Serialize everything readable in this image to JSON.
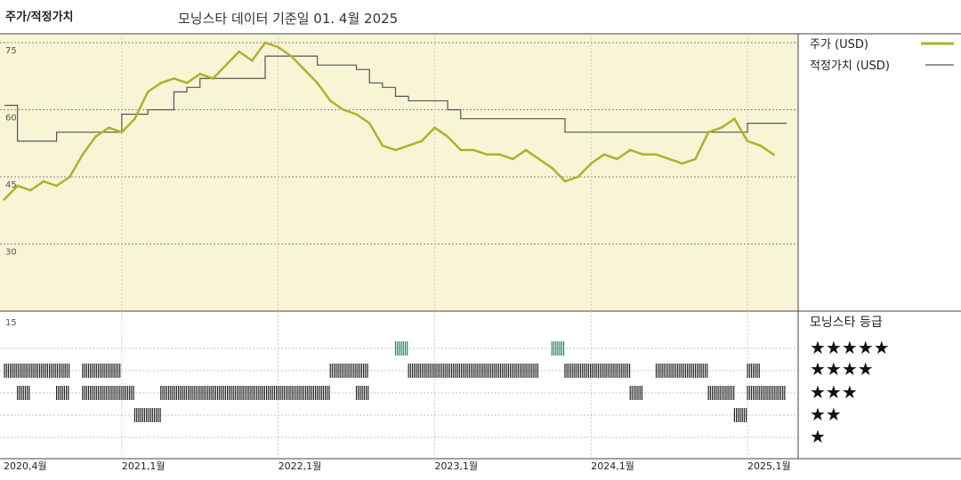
{
  "header": {
    "title": "주가/적정가치",
    "subtitle": "모닝스타 데이터 기준일 01. 4월 2025"
  },
  "legend": {
    "price_label": "주가 (USD)",
    "fair_value_label": "적정가치 (USD)",
    "rating_title": "모닝스타 등급",
    "rating_rows": [
      "★★★★★",
      "★★★★",
      "★★★",
      "★★",
      "★"
    ]
  },
  "colors": {
    "price": "#a8b52a",
    "fair_value": "#555555",
    "plot_bg": "#f8f4d6",
    "five_star": "#2e7d5b",
    "bars": "#222222"
  },
  "chart_data": {
    "type": "line",
    "title": "주가/적정가치",
    "subtitle": "모닝스타 데이터 기준일 01. 4월 2025",
    "ylim": [
      15,
      75
    ],
    "y_ticks": [
      75,
      60,
      45,
      30,
      15
    ],
    "x_tick_labels": [
      "2020,4월",
      "2021,1월",
      "2022,1월",
      "2023,1월",
      "2024,1월",
      "2025,1월"
    ],
    "x_tick_dates": [
      "2020-04",
      "2021-01",
      "2022-01",
      "2023-01",
      "2024-01",
      "2025-01"
    ],
    "x_range": [
      "2020-04",
      "2025-04"
    ],
    "series": [
      {
        "name": "주가 (USD)",
        "x": [
          "2020-04",
          "2020-05",
          "2020-06",
          "2020-07",
          "2020-08",
          "2020-09",
          "2020-10",
          "2020-11",
          "2020-12",
          "2021-01",
          "2021-02",
          "2021-03",
          "2021-04",
          "2021-05",
          "2021-06",
          "2021-07",
          "2021-08",
          "2021-09",
          "2021-10",
          "2021-11",
          "2021-12",
          "2022-01",
          "2022-02",
          "2022-03",
          "2022-04",
          "2022-05",
          "2022-06",
          "2022-07",
          "2022-08",
          "2022-09",
          "2022-10",
          "2022-11",
          "2022-12",
          "2023-01",
          "2023-02",
          "2023-03",
          "2023-04",
          "2023-05",
          "2023-06",
          "2023-07",
          "2023-08",
          "2023-09",
          "2023-10",
          "2023-11",
          "2023-12",
          "2024-01",
          "2024-02",
          "2024-03",
          "2024-04",
          "2024-05",
          "2024-06",
          "2024-07",
          "2024-08",
          "2024-09",
          "2024-10",
          "2024-11",
          "2024-12",
          "2025-01",
          "2025-02",
          "2025-03"
        ],
        "values": [
          40,
          43,
          42,
          44,
          43,
          45,
          50,
          54,
          56,
          55,
          58,
          64,
          66,
          67,
          66,
          68,
          67,
          70,
          73,
          71,
          75,
          74,
          72,
          69,
          66,
          62,
          60,
          59,
          57,
          52,
          51,
          52,
          53,
          56,
          54,
          51,
          51,
          50,
          50,
          49,
          51,
          49,
          47,
          44,
          45,
          48,
          50,
          49,
          51,
          50,
          50,
          49,
          48,
          49,
          55,
          56,
          58,
          53,
          52,
          50
        ]
      },
      {
        "name": "적정가치 (USD)",
        "x": [
          "2020-04",
          "2020-05",
          "2020-07",
          "2020-08",
          "2020-12",
          "2021-01",
          "2021-03",
          "2021-04",
          "2021-05",
          "2021-06",
          "2021-07",
          "2021-08",
          "2021-12",
          "2022-01",
          "2022-02",
          "2022-03",
          "2022-04",
          "2022-07",
          "2022-08",
          "2022-09",
          "2022-10",
          "2022-11",
          "2023-01",
          "2023-02",
          "2023-03",
          "2023-04",
          "2023-06",
          "2023-10",
          "2023-11",
          "2024-12",
          "2025-01",
          "2025-03"
        ],
        "values": [
          61,
          53,
          53,
          55,
          55,
          59,
          60,
          60,
          64,
          65,
          67,
          67,
          72,
          72,
          72,
          72,
          70,
          69,
          66,
          65,
          63,
          62,
          62,
          60,
          58,
          58,
          58,
          58,
          55,
          55,
          57,
          57
        ]
      }
    ],
    "rating_history": {
      "five_star": [
        [
          "2022-10",
          "2022-11"
        ],
        [
          "2023-10",
          "2023-11"
        ]
      ],
      "four_star": [
        [
          "2020-04",
          "2020-09"
        ],
        [
          "2020-10",
          "2021-01"
        ],
        [
          "2022-05",
          "2022-08"
        ],
        [
          "2022-11",
          "2023-09"
        ],
        [
          "2023-11",
          "2024-04"
        ],
        [
          "2024-06",
          "2024-10"
        ],
        [
          "2025-01",
          "2025-02"
        ]
      ],
      "three_star": [
        [
          "2020-05",
          "2020-06"
        ],
        [
          "2020-08",
          "2020-09"
        ],
        [
          "2020-10",
          "2021-02"
        ],
        [
          "2021-04",
          "2022-05"
        ],
        [
          "2022-07",
          "2022-08"
        ],
        [
          "2024-04",
          "2024-05"
        ],
        [
          "2024-10",
          "2024-12"
        ],
        [
          "2025-01",
          "2025-04"
        ]
      ],
      "two_star": [
        [
          "2021-02",
          "2021-04"
        ],
        [
          "2024-12",
          "2025-01"
        ]
      ],
      "one_star": []
    }
  }
}
